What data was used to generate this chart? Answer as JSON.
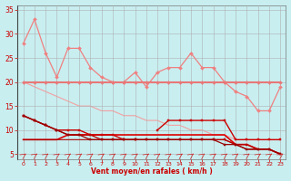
{
  "x": [
    0,
    1,
    2,
    3,
    4,
    5,
    6,
    7,
    8,
    9,
    10,
    11,
    12,
    13,
    14,
    15,
    16,
    17,
    18,
    19,
    20,
    21,
    22,
    23
  ],
  "line_rafales": [
    28,
    33,
    26,
    21,
    27,
    27,
    23,
    21,
    20,
    20,
    22,
    19,
    22,
    23,
    23,
    26,
    23,
    23,
    20,
    18,
    17,
    14,
    14,
    19
  ],
  "line_moy_flat": [
    20,
    20,
    20,
    20,
    20,
    20,
    20,
    20,
    20,
    20,
    20,
    20,
    20,
    20,
    20,
    20,
    20,
    20,
    20,
    20,
    20,
    20,
    20,
    20
  ],
  "line_moy_diag": [
    20,
    19,
    18,
    17,
    16,
    15,
    15,
    14,
    14,
    13,
    13,
    12,
    12,
    11,
    11,
    10,
    10,
    9,
    9,
    8,
    8,
    8,
    8,
    8
  ],
  "line_red1": [
    13,
    12,
    11,
    10,
    10,
    10,
    9,
    9,
    9,
    8,
    8,
    null,
    10,
    12,
    12,
    12,
    12,
    12,
    12,
    8,
    8,
    8,
    8,
    8
  ],
  "line_red2": [
    13,
    12,
    11,
    10,
    9,
    9,
    9,
    8,
    8,
    8,
    8,
    8,
    8,
    8,
    8,
    8,
    8,
    8,
    8,
    7,
    7,
    6,
    6,
    5
  ],
  "line_red3": [
    13,
    12,
    11,
    10,
    9,
    9,
    8,
    8,
    8,
    8,
    8,
    8,
    8,
    8,
    8,
    8,
    8,
    8,
    7,
    7,
    6,
    6,
    6,
    5
  ],
  "line_red4": [
    8,
    8,
    8,
    8,
    9,
    9,
    9,
    9,
    9,
    9,
    9,
    9,
    9,
    9,
    9,
    9,
    9,
    9,
    9,
    7,
    7,
    6,
    6,
    5
  ],
  "line_red5": [
    8,
    8,
    8,
    8,
    8,
    8,
    8,
    8,
    8,
    8,
    8,
    8,
    8,
    8,
    8,
    8,
    8,
    8,
    8,
    7,
    6,
    6,
    6,
    5
  ],
  "xlim": [
    -0.5,
    23.5
  ],
  "ylim": [
    4,
    36
  ],
  "yticks": [
    5,
    10,
    15,
    20,
    25,
    30,
    35
  ],
  "xticks": [
    0,
    1,
    2,
    3,
    4,
    5,
    6,
    7,
    8,
    9,
    10,
    11,
    12,
    13,
    14,
    15,
    16,
    17,
    18,
    19,
    20,
    21,
    22,
    23
  ],
  "xlabel": "Vent moyen/en rafales ( km/h )",
  "bg_color": "#c8eef0",
  "grid_color": "#b0b0b0",
  "col_light1": "#f08080",
  "col_light2": "#e87878",
  "col_light3": "#f4a0a0",
  "col_dark1": "#cc0000",
  "col_dark2": "#bb0000",
  "col_dark3": "#990000",
  "col_dark4": "#dd0000",
  "col_dark5": "#aa0000"
}
